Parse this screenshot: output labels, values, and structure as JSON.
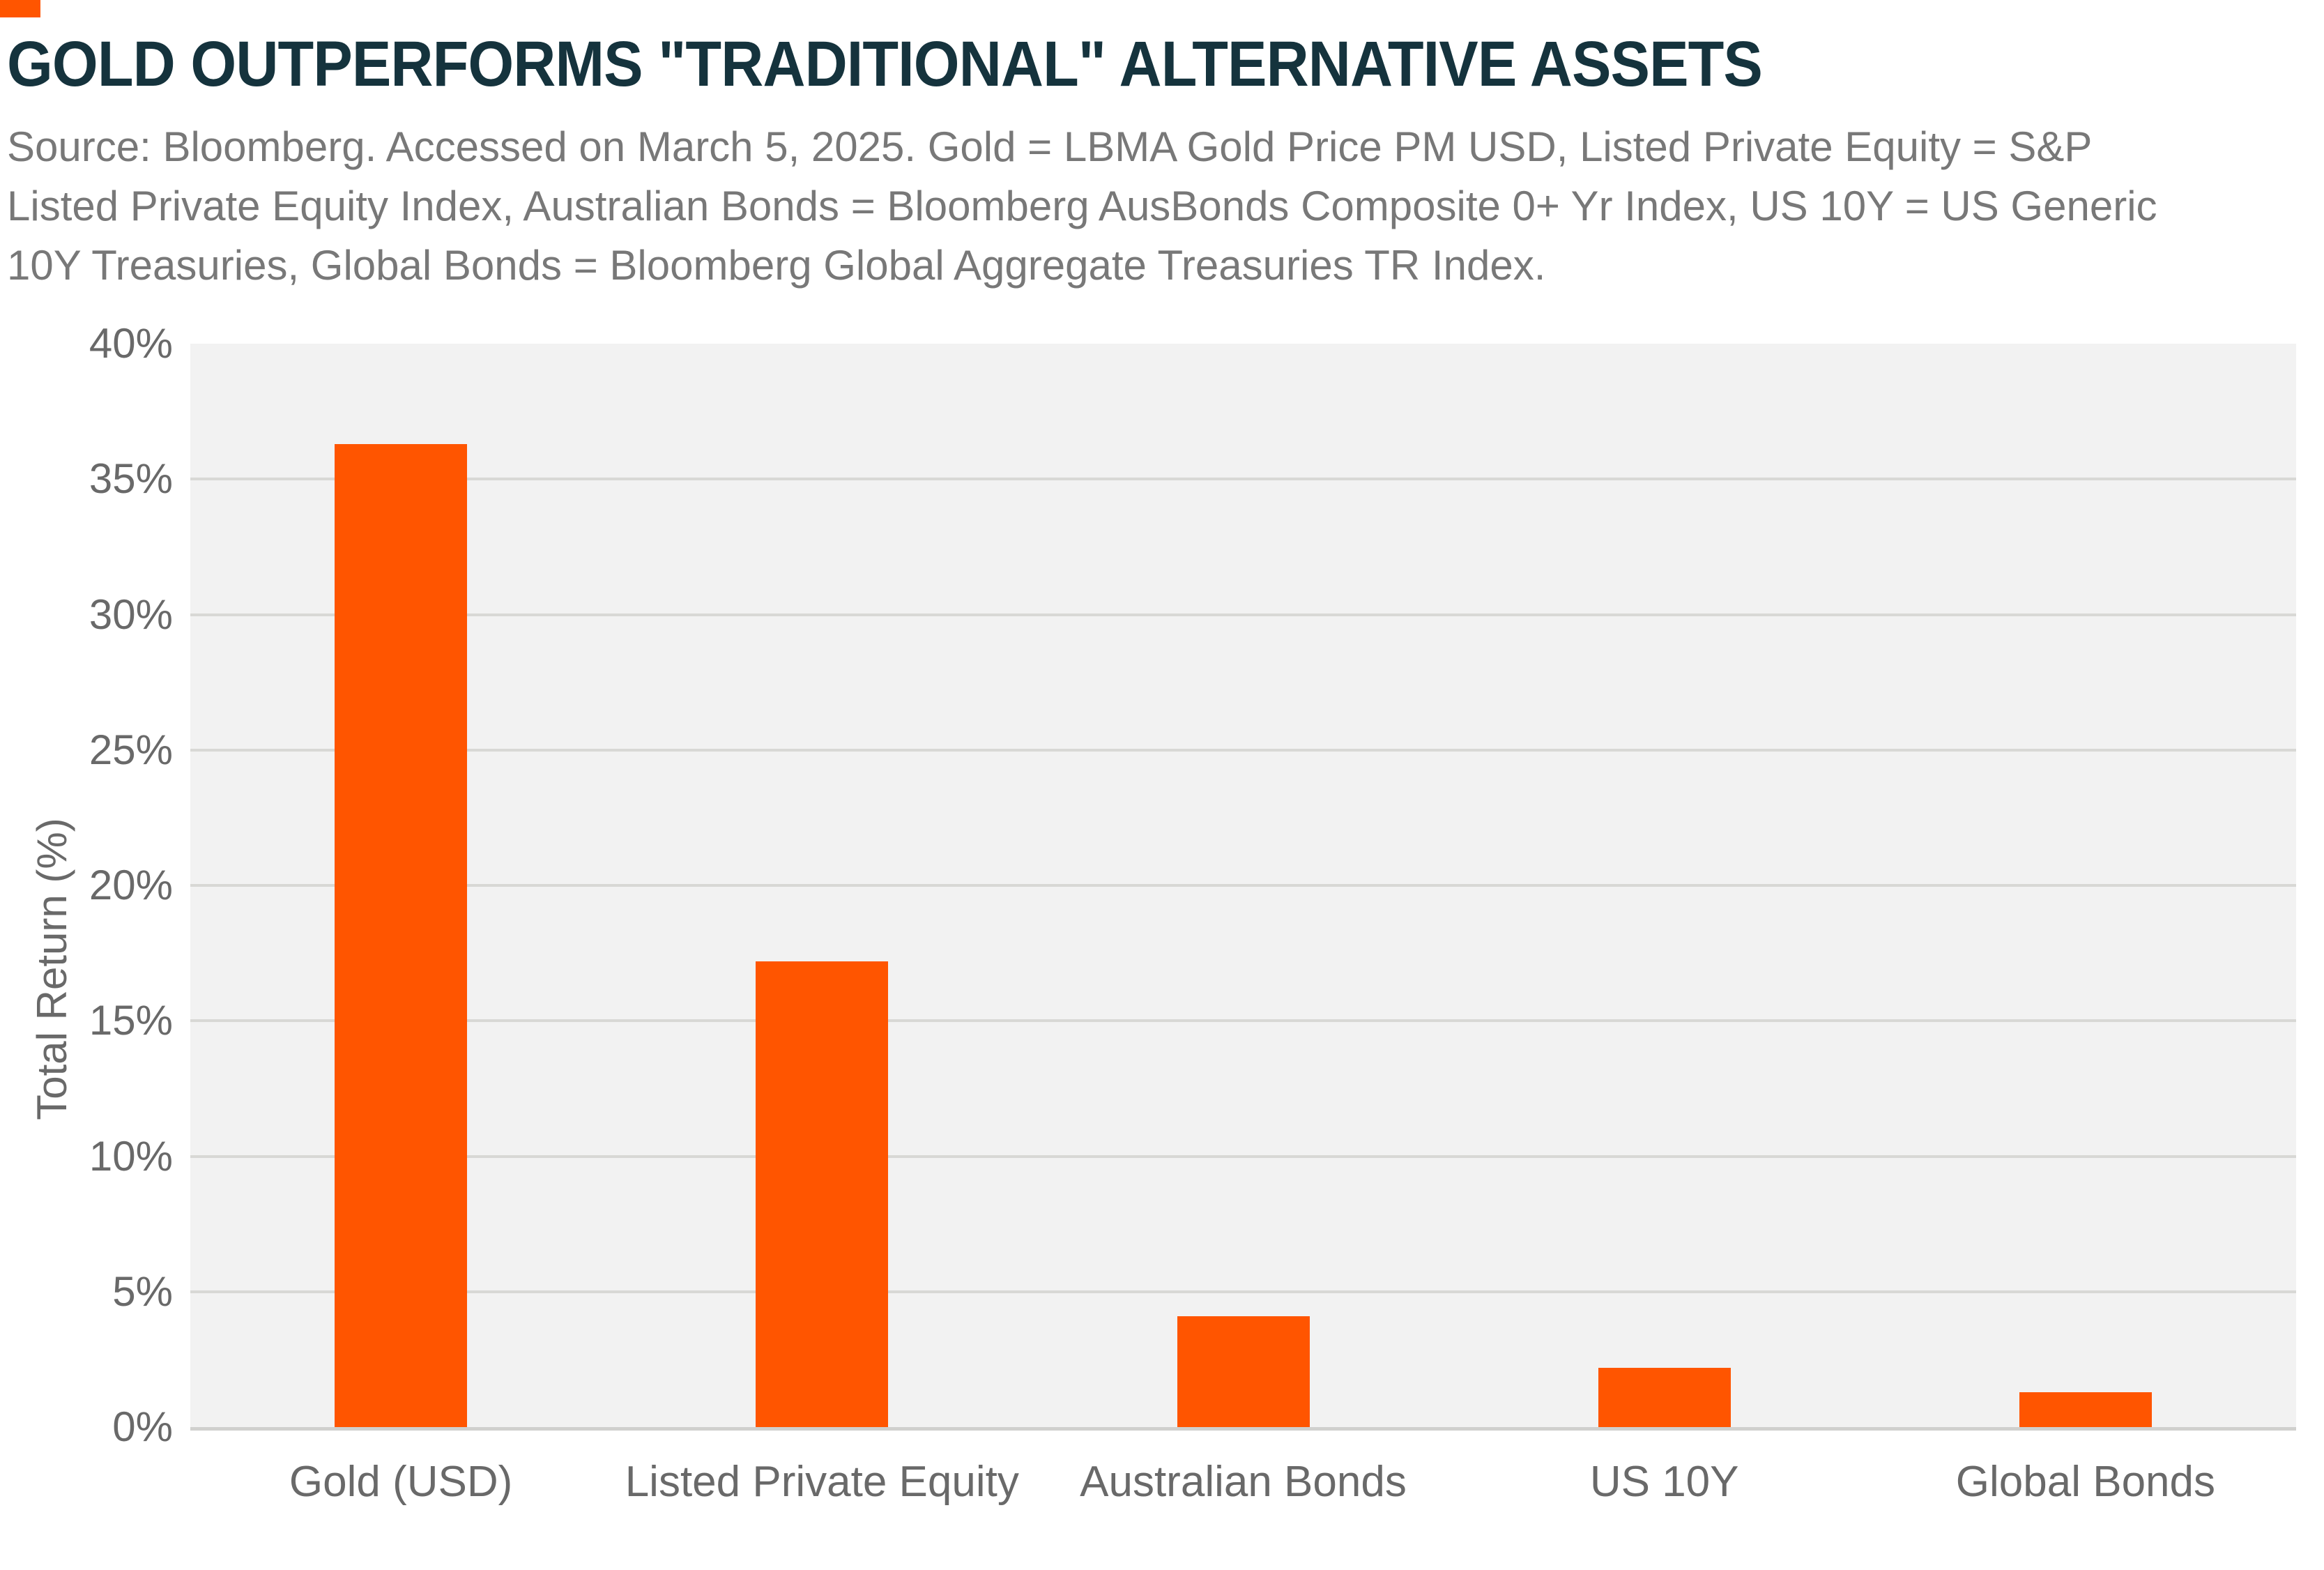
{
  "brand": {
    "corner_mark_color": "#ff5500"
  },
  "header": {
    "title": "GOLD OUTPERFORMS \"TRADITIONAL\" ALTERNATIVE ASSETS",
    "source_lines": [
      "Source: Bloomberg. Accessed on March 5, 2025. Gold = LBMA Gold Price PM USD, Listed Private Equity = S&P",
      "Listed Private Equity Index, Australian Bonds = Bloomberg AusBonds Composite 0+ Yr Index, US 10Y = US Generic",
      "10Y Treasuries, Global Bonds = Bloomberg Global Aggregate Treasuries TR Index."
    ]
  },
  "chart_data": {
    "type": "bar",
    "title": "GOLD OUTPERFORMS \"TRADITIONAL\" ALTERNATIVE ASSETS",
    "categories": [
      "Gold (USD)",
      "Listed Private Equity",
      "Australian Bonds",
      "US 10Y",
      "Global Bonds"
    ],
    "values": [
      36.3,
      17.2,
      4.1,
      2.2,
      1.3
    ],
    "unit": "%",
    "xlabel": "",
    "ylabel": "Total Return (%)",
    "ylim": [
      0,
      40
    ],
    "ytick_step": 5,
    "ytick_labels": [
      "0%",
      "5%",
      "10%",
      "15%",
      "20%",
      "25%",
      "30%",
      "35%",
      "40%"
    ],
    "grid": "horizontal",
    "legend": "none",
    "bar_color": "#ff5500",
    "plot_bg": "#f2f2f2",
    "gridline_color": "#d8d8d5",
    "baseline_color": "#d0d0ce"
  }
}
